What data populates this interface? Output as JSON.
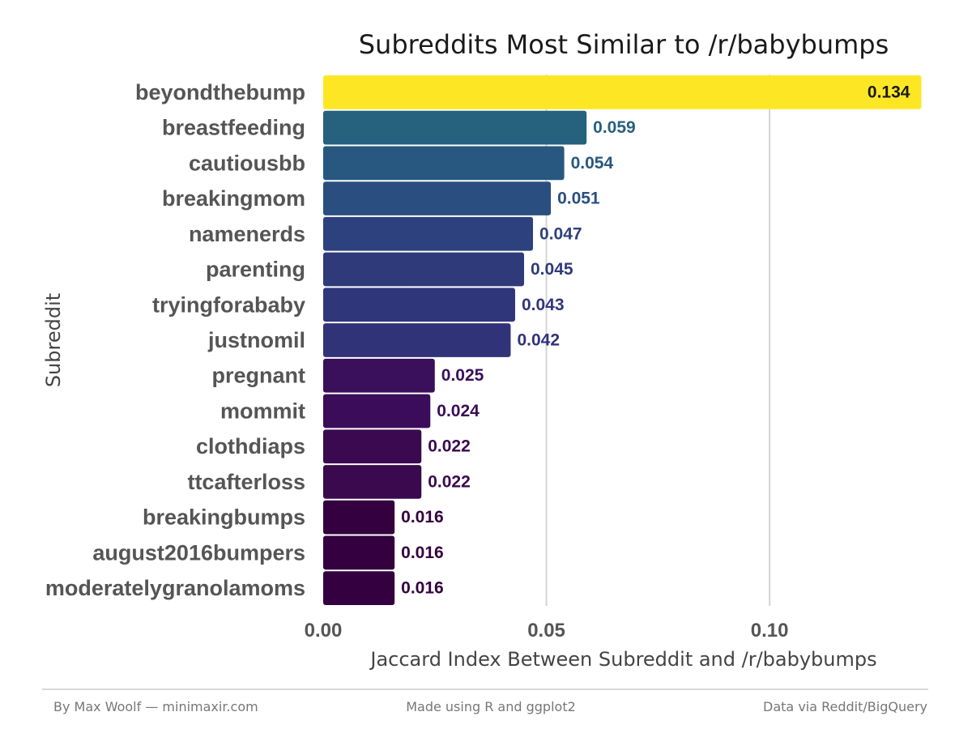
{
  "chart_data": {
    "type": "bar",
    "orientation": "horizontal",
    "title": "Subreddits Most Similar to /r/babybumps",
    "xlabel": "Jaccard Index Between Subreddit and /r/babybumps",
    "ylabel": "Subreddit",
    "xlim": [
      0,
      0.135
    ],
    "x_ticks": [
      0.0,
      0.05,
      0.1
    ],
    "x_tick_labels": [
      "0.00",
      "0.05",
      "0.10"
    ],
    "grid": "vertical major gridlines",
    "color_scale": "viridis",
    "categories": [
      "beyondthebump",
      "breastfeeding",
      "cautiousbb",
      "breakingmom",
      "namenerds",
      "parenting",
      "tryingforababy",
      "justnomil",
      "pregnant",
      "mommit",
      "clothdiaps",
      "ttcafterloss",
      "breakingbumps",
      "august2016bumpers",
      "moderatelygranolamoms"
    ],
    "values": [
      0.134,
      0.059,
      0.054,
      0.051,
      0.047,
      0.045,
      0.043,
      0.042,
      0.025,
      0.024,
      0.022,
      0.022,
      0.016,
      0.016,
      0.016
    ],
    "value_labels": [
      "0.134",
      "0.059",
      "0.054",
      "0.051",
      "0.047",
      "0.045",
      "0.043",
      "0.042",
      "0.025",
      "0.024",
      "0.022",
      "0.022",
      "0.016",
      "0.016",
      "0.016"
    ],
    "bar_colors": [
      "#FDE725",
      "#26617D",
      "#28587F",
      "#2A4E80",
      "#2D417E",
      "#2F3A7B",
      "#30367A",
      "#313379",
      "#3A0F5B",
      "#3B0C5A",
      "#3A0950",
      "#3A094E",
      "#34003F",
      "#34003F",
      "#34003F"
    ]
  },
  "footer": {
    "left": "By Max Woolf — minimaxir.com",
    "center": "Made using R and ggplot2",
    "right": "Data via Reddit/BigQuery"
  }
}
